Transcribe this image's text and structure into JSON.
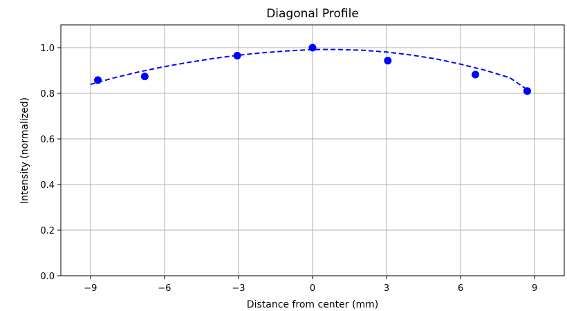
{
  "chart_data": {
    "type": "scatter",
    "title": "Diagonal Profile",
    "xlabel": "Distance from center (mm)",
    "ylabel": "Intensity (normalized)",
    "xlim": [
      -10.2,
      10.2
    ],
    "ylim": [
      0.0,
      1.1
    ],
    "x_ticks": [
      -9,
      -6,
      -3,
      0,
      3,
      6,
      9
    ],
    "x_tick_labels": [
      "−9",
      "−6",
      "−3",
      "0",
      "3",
      "6",
      "9"
    ],
    "y_ticks": [
      0.0,
      0.2,
      0.4,
      0.6,
      0.8,
      1.0
    ],
    "y_tick_labels": [
      "0.0",
      "0.2",
      "0.4",
      "0.6",
      "0.8",
      "1.0"
    ],
    "grid": true,
    "series": [
      {
        "kind": "points",
        "color": "#0000ff",
        "x": [
          -8.7,
          -6.8,
          -3.05,
          0.0,
          3.05,
          6.6,
          8.7
        ],
        "y": [
          0.858,
          0.874,
          0.965,
          1.0,
          0.943,
          0.882,
          0.81
        ]
      },
      {
        "kind": "fit",
        "style": "dashed",
        "color": "#0000ff",
        "x": [
          -9.0,
          -8.0,
          -7.0,
          -6.0,
          -5.0,
          -4.0,
          -3.0,
          -2.0,
          -1.0,
          0.0,
          1.0,
          2.0,
          3.0,
          4.0,
          5.0,
          6.0,
          7.0,
          8.0,
          8.7
        ],
        "y": [
          0.839,
          0.869,
          0.895,
          0.917,
          0.936,
          0.953,
          0.967,
          0.978,
          0.986,
          0.992,
          0.992,
          0.989,
          0.981,
          0.968,
          0.951,
          0.928,
          0.901,
          0.868,
          0.816
        ]
      }
    ]
  }
}
